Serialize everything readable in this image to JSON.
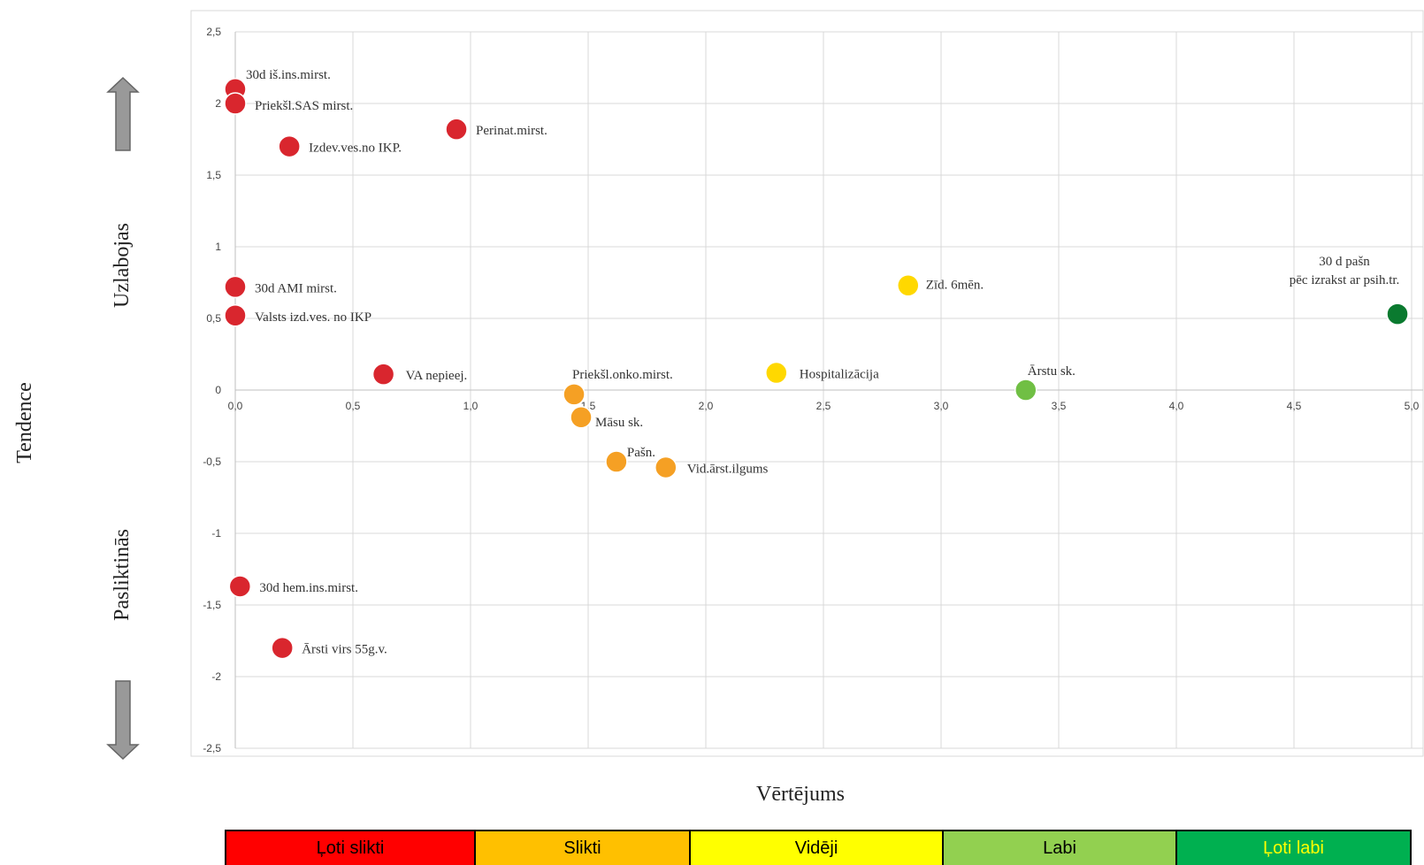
{
  "chart_data": {
    "type": "scatter",
    "xlabel": "Vērtējums",
    "ylabel": "Tendence",
    "upper_label": "Uzlabojas",
    "lower_label": "Pasliktinās",
    "xlim": [
      0,
      5
    ],
    "ylim": [
      -2.5,
      2.5
    ],
    "x_ticks": [
      "0,0",
      "0,5",
      "1,0",
      "1,5",
      "2,0",
      "2,5",
      "3,0",
      "3,5",
      "4,0",
      "4,5",
      "5,0"
    ],
    "y_ticks": [
      "2,5",
      "2",
      "1,5",
      "1",
      "0,5",
      "0",
      "-0,5",
      "-1",
      "-1,5",
      "-2",
      "-2,5"
    ],
    "grid": true,
    "colors": {
      "red": "#d9262e",
      "orange": "#f5a024",
      "yellow": "#ffd800",
      "lightgreen": "#70bf44",
      "darkgreen": "#0a7a2f"
    },
    "points": [
      {
        "label": "30d iš.ins.mirst.",
        "x": 0.0,
        "y": 2.1,
        "color": "red"
      },
      {
        "label": "Priekšl.SAS mirst.",
        "x": 0.0,
        "y": 2.0,
        "color": "red"
      },
      {
        "label": "Izdev.ves.no IKP.",
        "x": 0.23,
        "y": 1.7,
        "color": "red"
      },
      {
        "label": "Perinat.mirst.",
        "x": 0.94,
        "y": 1.82,
        "color": "red"
      },
      {
        "label": "30d AMI mirst.",
        "x": 0.0,
        "y": 0.72,
        "color": "red"
      },
      {
        "label": "Valsts izd.ves. no IKP",
        "x": 0.0,
        "y": 0.52,
        "color": "red"
      },
      {
        "label": "VA nepieej.",
        "x": 0.63,
        "y": 0.11,
        "color": "red"
      },
      {
        "label": "30d hem.ins.mirst.",
        "x": 0.02,
        "y": -1.37,
        "color": "red"
      },
      {
        "label": "Ārsti virs 55g.v.",
        "x": 0.2,
        "y": -1.8,
        "color": "red"
      },
      {
        "label": "Priekšl.onko.mirst.",
        "x": 1.44,
        "y": -0.03,
        "color": "orange"
      },
      {
        "label": "Māsu sk.",
        "x": 1.47,
        "y": -0.19,
        "color": "orange"
      },
      {
        "label": "Pašn.",
        "x": 1.62,
        "y": -0.5,
        "color": "orange"
      },
      {
        "label": "Vid.ārst.ilgums",
        "x": 1.83,
        "y": -0.54,
        "color": "orange"
      },
      {
        "label": "Hospitalizācija",
        "x": 2.3,
        "y": 0.12,
        "color": "yellow"
      },
      {
        "label": "Zīd. 6mēn.",
        "x": 2.86,
        "y": 0.73,
        "color": "yellow"
      },
      {
        "label": "Ārstu sk.",
        "x": 3.36,
        "y": 0.0,
        "color": "lightgreen"
      },
      {
        "label": "30 d pašn pēc izrakst ar psih.tr.",
        "x": 4.94,
        "y": 0.53,
        "color": "darkgreen"
      }
    ]
  },
  "legend": [
    {
      "label": "Ļoti slikti",
      "bg": "#ff0000",
      "fg": "#000000"
    },
    {
      "label": "Slikti",
      "bg": "#ffc000",
      "fg": "#000000"
    },
    {
      "label": "Vidēji",
      "bg": "#ffff00",
      "fg": "#000000"
    },
    {
      "label": "Labi",
      "bg": "#92d050",
      "fg": "#000000"
    },
    {
      "label": "Ļoti labi",
      "bg": "#00b050",
      "fg": "#ffff00"
    }
  ]
}
